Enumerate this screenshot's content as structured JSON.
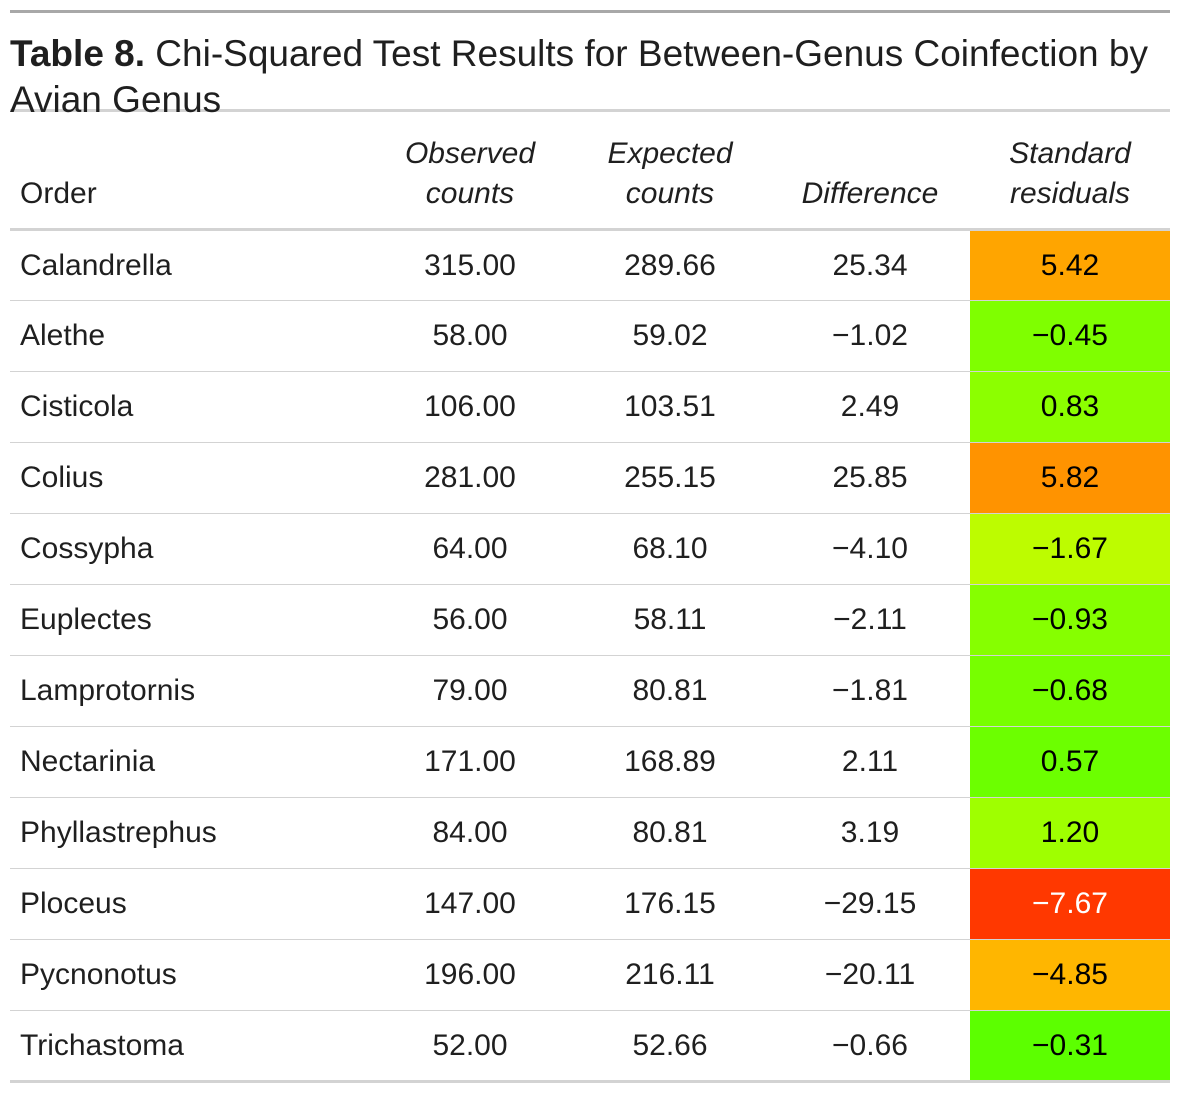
{
  "caption": {
    "label": "Table 8.",
    "title": " Chi-Squared Test Results for Between-Genus Coinfection by Avian Genus"
  },
  "columns": [
    {
      "line1": "",
      "line2": "Order"
    },
    {
      "line1": "Observed",
      "line2": "counts"
    },
    {
      "line1": "Expected",
      "line2": "counts"
    },
    {
      "line1": "",
      "line2": "Difference"
    },
    {
      "line1": "Standard",
      "line2": "residuals"
    }
  ],
  "rows": [
    {
      "order": "Calandrella",
      "observed": "315.00",
      "expected": "289.66",
      "difference": "25.34",
      "residual": "5.42",
      "residual_value": 5.42,
      "residual_color": "#ffa500",
      "residual_text_color": "#000000"
    },
    {
      "order": "Alethe",
      "observed": "58.00",
      "expected": "59.02",
      "difference": "−1.02",
      "residual": "−0.45",
      "residual_value": -0.45,
      "residual_color": "#7fff00",
      "residual_text_color": "#000000"
    },
    {
      "order": "Cisticola",
      "observed": "106.00",
      "expected": "103.51",
      "difference": "2.49",
      "residual": "0.83",
      "residual_value": 0.83,
      "residual_color": "#8cff00",
      "residual_text_color": "#000000"
    },
    {
      "order": "Colius",
      "observed": "281.00",
      "expected": "255.15",
      "difference": "25.85",
      "residual": "5.82",
      "residual_value": 5.82,
      "residual_color": "#ff9300",
      "residual_text_color": "#000000"
    },
    {
      "order": "Cossypha",
      "observed": "64.00",
      "expected": "68.10",
      "difference": "−4.10",
      "residual": "−1.67",
      "residual_value": -1.67,
      "residual_color": "#bdfc00",
      "residual_text_color": "#000000"
    },
    {
      "order": "Euplectes",
      "observed": "56.00",
      "expected": "58.11",
      "difference": "−2.11",
      "residual": "−0.93",
      "residual_value": -0.93,
      "residual_color": "#86ff00",
      "residual_text_color": "#000000"
    },
    {
      "order": "Lamprotornis",
      "observed": "79.00",
      "expected": "80.81",
      "difference": "−1.81",
      "residual": "−0.68",
      "residual_value": -0.68,
      "residual_color": "#77ff00",
      "residual_text_color": "#000000"
    },
    {
      "order": "Nectarinia",
      "observed": "171.00",
      "expected": "168.89",
      "difference": "2.11",
      "residual": "0.57",
      "residual_value": 0.57,
      "residual_color": "#6cff00",
      "residual_text_color": "#000000"
    },
    {
      "order": "Phyllastrephus",
      "observed": "84.00",
      "expected": "80.81",
      "difference": "3.19",
      "residual": "1.20",
      "residual_value": 1.2,
      "residual_color": "#9fff00",
      "residual_text_color": "#000000"
    },
    {
      "order": "Ploceus",
      "observed": "147.00",
      "expected": "176.15",
      "difference": "−29.15",
      "residual": "−7.67",
      "residual_value": -7.67,
      "residual_color": "#ff3800",
      "residual_text_color": "#ffffff"
    },
    {
      "order": "Pycnonotus",
      "observed": "196.00",
      "expected": "216.11",
      "difference": "−20.11",
      "residual": "−4.85",
      "residual_value": -4.85,
      "residual_color": "#ffb600",
      "residual_text_color": "#000000"
    },
    {
      "order": "Trichastoma",
      "observed": "52.00",
      "expected": "52.66",
      "difference": "−0.66",
      "residual": "−0.31",
      "residual_value": -0.31,
      "residual_color": "#5cff00",
      "residual_text_color": "#000000"
    }
  ]
}
